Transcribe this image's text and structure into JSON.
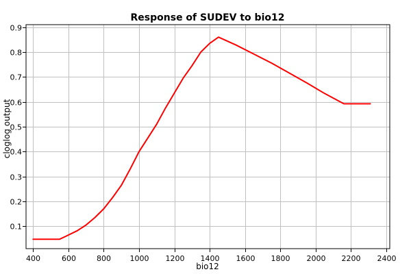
{
  "chart_data": {
    "type": "line",
    "title": "Response of SUDEV to bio12",
    "xlabel": "bio12",
    "ylabel": "cloglog output",
    "xlim": [
      360,
      2420
    ],
    "ylim": [
      0.01,
      0.91
    ],
    "xticks": [
      400,
      600,
      800,
      1000,
      1200,
      1400,
      1600,
      1800,
      2000,
      2200,
      2400
    ],
    "yticks": [
      0.1,
      0.2,
      0.3,
      0.4,
      0.5,
      0.6,
      0.7,
      0.8,
      0.9
    ],
    "xtick_labels": [
      "400",
      "600",
      "800",
      "1000",
      "1200",
      "1400",
      "1600",
      "1800",
      "2000",
      "2200",
      "2400"
    ],
    "ytick_labels": [
      "0.1",
      "0.2",
      "0.3",
      "0.4",
      "0.5",
      "0.6",
      "0.7",
      "0.8",
      "0.9"
    ],
    "grid": true,
    "series": [
      {
        "color": "#ff0000",
        "x": [
          400,
          550,
          580,
          650,
          700,
          750,
          800,
          850,
          900,
          950,
          1000,
          1050,
          1100,
          1150,
          1200,
          1250,
          1300,
          1350,
          1400,
          1450,
          1550,
          1650,
          1750,
          1850,
          1950,
          2050,
          2160,
          2310
        ],
        "y": [
          0.048,
          0.048,
          0.058,
          0.082,
          0.105,
          0.135,
          0.17,
          0.215,
          0.265,
          0.33,
          0.4,
          0.455,
          0.51,
          0.575,
          0.635,
          0.695,
          0.745,
          0.8,
          0.835,
          0.86,
          0.828,
          0.792,
          0.756,
          0.716,
          0.676,
          0.634,
          0.592,
          0.592
        ]
      }
    ]
  }
}
